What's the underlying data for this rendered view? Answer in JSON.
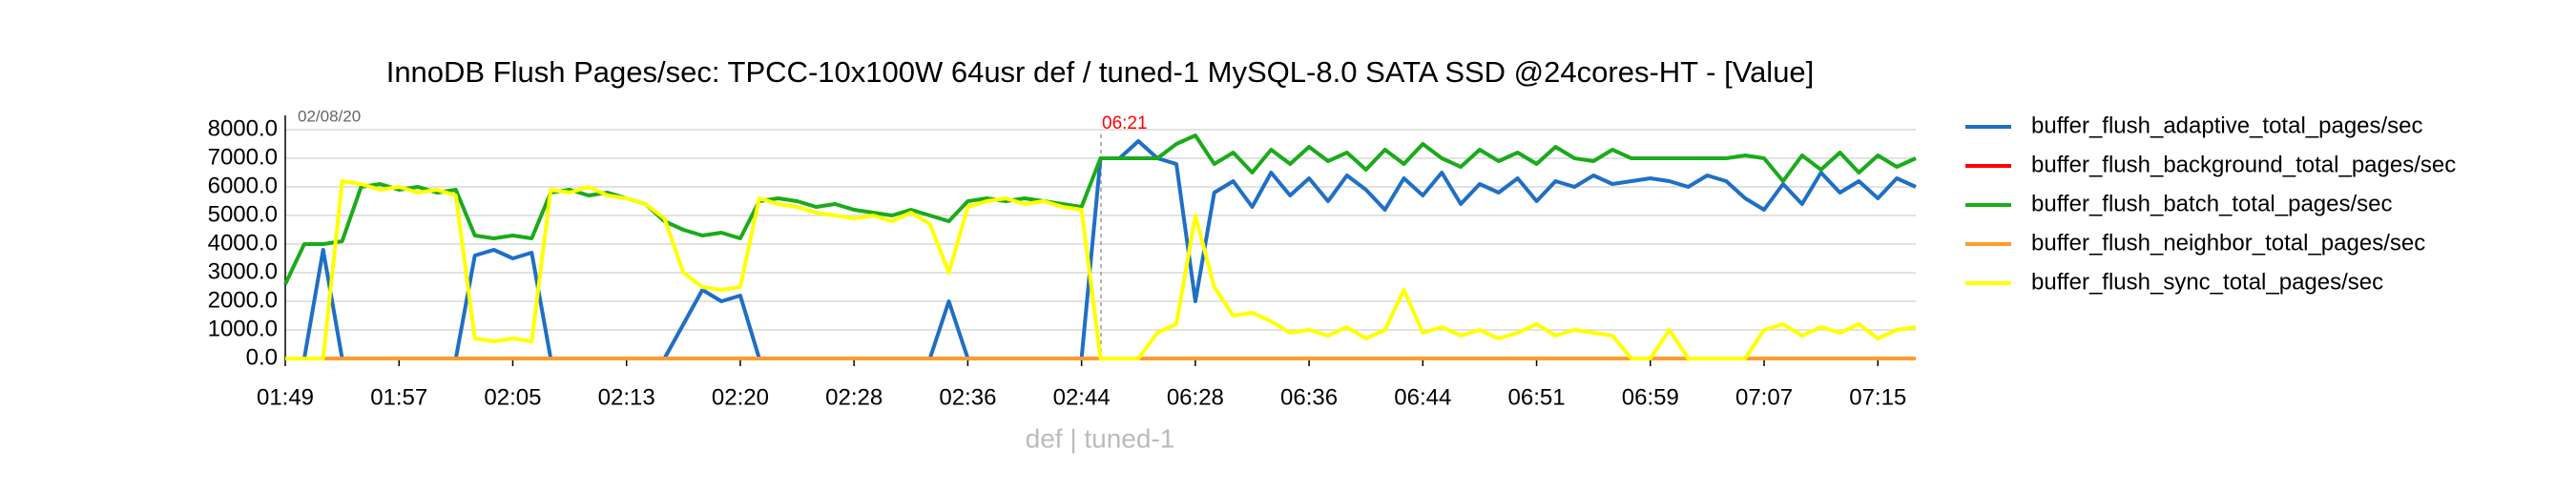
{
  "chart_data": {
    "type": "line",
    "title": "InnoDB Flush Pages/sec: TPCC-10x100W 64usr def / tuned-1 MySQL-8.0 SATA SSD @24cores-HT - [Value]",
    "x_label": "def | tuned-1",
    "annotations": [
      "02/08/20",
      "06:21"
    ],
    "categories": [
      "01:49",
      null,
      null,
      null,
      null,
      null,
      "01:57",
      null,
      null,
      null,
      null,
      null,
      "02:05",
      null,
      null,
      null,
      null,
      null,
      "02:13",
      null,
      null,
      null,
      null,
      null,
      "02:20",
      null,
      null,
      null,
      null,
      null,
      "02:28",
      null,
      null,
      null,
      null,
      null,
      "02:36",
      null,
      null,
      null,
      null,
      null,
      "02:44",
      null,
      null,
      null,
      null,
      null,
      "06:28",
      null,
      null,
      null,
      null,
      null,
      "06:36",
      null,
      null,
      null,
      null,
      null,
      "06:44",
      null,
      null,
      null,
      null,
      null,
      "06:51",
      null,
      null,
      null,
      null,
      null,
      "06:59",
      null,
      null,
      null,
      null,
      null,
      "07:07",
      null,
      null,
      null,
      null,
      null,
      "07:15",
      null,
      null
    ],
    "series": [
      {
        "name": "buffer_flush_adaptive_total_pages/sec",
        "color": "#1f6fc5",
        "values": [
          0,
          0,
          3800,
          0,
          0,
          0,
          0,
          0,
          0,
          0,
          3600,
          3800,
          3500,
          3700,
          0,
          0,
          0,
          0,
          0,
          0,
          0,
          1200,
          2400,
          2000,
          2200,
          0,
          0,
          0,
          0,
          0,
          0,
          0,
          0,
          0,
          0,
          2000,
          0,
          0,
          0,
          0,
          0,
          0,
          0,
          7000,
          7000,
          7600,
          7000,
          6800,
          2000,
          5800,
          6200,
          5300,
          6500,
          5700,
          6300,
          5500,
          6400,
          5900,
          5200,
          6300,
          5700,
          6500,
          5400,
          6100,
          5800,
          6300,
          5500,
          6200,
          6000,
          6400,
          6100,
          6200,
          6300,
          6200,
          6000,
          6400,
          6200,
          5600,
          5200,
          6100,
          5400,
          6500,
          5800,
          6200,
          5600,
          6300,
          6000
        ]
      },
      {
        "name": "buffer_flush_background_total_pages/sec",
        "color": "#ff0000",
        "values": [
          0,
          0,
          0,
          0,
          0,
          0,
          0,
          0,
          0,
          0,
          0,
          0,
          0,
          0,
          0,
          0,
          0,
          0,
          0,
          0,
          0,
          0,
          0,
          0,
          0,
          0,
          0,
          0,
          0,
          0,
          0,
          0,
          0,
          0,
          0,
          0,
          0,
          0,
          0,
          0,
          0,
          0,
          0,
          0,
          0,
          0,
          0,
          0,
          0,
          0,
          0,
          0,
          0,
          0,
          0,
          0,
          0,
          0,
          0,
          0,
          0,
          0,
          0,
          0,
          0,
          0,
          0,
          0,
          0,
          0,
          0,
          0,
          0,
          0,
          0,
          0,
          0,
          0,
          0,
          0,
          0,
          0,
          0,
          0,
          0,
          0,
          0
        ]
      },
      {
        "name": "buffer_flush_batch_total_pages/sec",
        "color": "#1aab1a",
        "values": [
          2600,
          4000,
          4000,
          4100,
          6000,
          6100,
          5900,
          6000,
          5800,
          5900,
          4300,
          4200,
          4300,
          4200,
          5800,
          5900,
          5700,
          5800,
          5600,
          5400,
          4800,
          4500,
          4300,
          4400,
          4200,
          5500,
          5600,
          5500,
          5300,
          5400,
          5200,
          5100,
          5000,
          5200,
          5000,
          4800,
          5500,
          5600,
          5500,
          5600,
          5500,
          5400,
          5300,
          7000,
          7000,
          7000,
          7000,
          7500,
          7800,
          6800,
          7200,
          6500,
          7300,
          6800,
          7400,
          6900,
          7200,
          6600,
          7300,
          6800,
          7500,
          7000,
          6700,
          7300,
          6900,
          7200,
          6800,
          7400,
          7000,
          6900,
          7300,
          7000,
          7000,
          7000,
          7000,
          7000,
          7000,
          7100,
          7000,
          6200,
          7100,
          6600,
          7200,
          6500,
          7100,
          6700,
          7000
        ]
      },
      {
        "name": "buffer_flush_neighbor_total_pages/sec",
        "color": "#ff9b2e",
        "values": [
          0,
          0,
          0,
          0,
          0,
          0,
          0,
          0,
          0,
          0,
          0,
          0,
          0,
          0,
          0,
          0,
          0,
          0,
          0,
          0,
          0,
          0,
          0,
          0,
          0,
          0,
          0,
          0,
          0,
          0,
          0,
          0,
          0,
          0,
          0,
          0,
          0,
          0,
          0,
          0,
          0,
          0,
          0,
          0,
          0,
          0,
          0,
          0,
          0,
          0,
          0,
          0,
          0,
          0,
          0,
          0,
          0,
          0,
          0,
          0,
          0,
          0,
          0,
          0,
          0,
          0,
          0,
          0,
          0,
          0,
          0,
          0,
          0,
          0,
          0,
          0,
          0,
          0,
          0,
          0,
          0,
          0,
          0,
          0,
          0,
          0,
          0
        ]
      },
      {
        "name": "buffer_flush_sync_total_pages/sec",
        "color": "#ffff00",
        "values": [
          0,
          0,
          0,
          6200,
          6100,
          5900,
          6000,
          5800,
          5900,
          5700,
          700,
          600,
          700,
          600,
          5900,
          5800,
          6000,
          5700,
          5600,
          5400,
          4900,
          3000,
          2500,
          2400,
          2500,
          5600,
          5400,
          5300,
          5100,
          5000,
          4900,
          5000,
          4800,
          5100,
          4700,
          3000,
          5300,
          5500,
          5600,
          5400,
          5500,
          5300,
          5200,
          0,
          0,
          0,
          900,
          1200,
          5000,
          2500,
          1500,
          1600,
          1300,
          900,
          1000,
          800,
          1100,
          700,
          1000,
          2400,
          900,
          1100,
          800,
          1000,
          700,
          900,
          1200,
          800,
          1000,
          900,
          800,
          0,
          0,
          1000,
          0,
          0,
          0,
          0,
          1000,
          1200,
          800,
          1100,
          900,
          1200,
          700,
          1000,
          1100
        ]
      }
    ],
    "ylim": [
      0,
      8500
    ],
    "yticks": [
      {
        "value": 0,
        "label": "0.0"
      },
      {
        "value": 1000,
        "label": "1000.0"
      },
      {
        "value": 2000,
        "label": "2000.0"
      },
      {
        "value": 3000,
        "label": "3000.0"
      },
      {
        "value": 4000,
        "label": "4000.0"
      },
      {
        "value": 5000,
        "label": "5000.0"
      },
      {
        "value": 6000,
        "label": "6000.0"
      },
      {
        "value": 7000,
        "label": "7000.0"
      },
      {
        "value": 8000,
        "label": "8000.0"
      }
    ],
    "grid": true,
    "legend": "right"
  }
}
